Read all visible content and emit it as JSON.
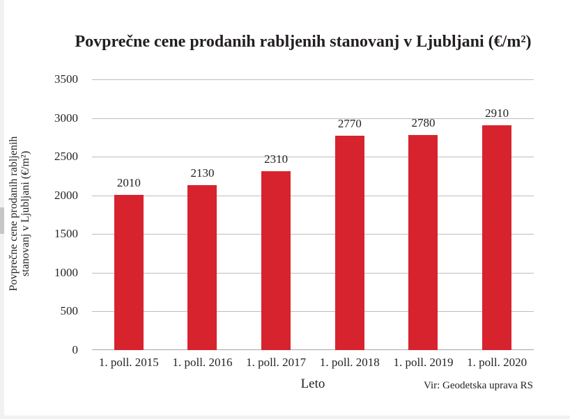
{
  "page": {
    "source_note": "Vir: Geodetska uprava RS"
  },
  "colors": {
    "bar": "#d7232e",
    "gridline": "#bdbdbd",
    "baseline": "#a6a6a6",
    "text": "#231f20",
    "scrollbar_track": "#f1f1f1",
    "scrollbar_thumb": "#c6c6c6"
  },
  "chart_data": {
    "type": "bar",
    "title": "Povprečne cene prodanih rabljenih stanovanj v Ljubljani (€/m²)",
    "categories": [
      "1. poll. 2015",
      "1. poll. 2016",
      "1. poll. 2017",
      "1. poll. 2018",
      "1. poll. 2019",
      "1. poll. 2020"
    ],
    "values": [
      2010,
      2130,
      2310,
      2770,
      2780,
      2910
    ],
    "data_labels": [
      "2010",
      "2130",
      "2310",
      "2770",
      "2780",
      "2910"
    ],
    "xlabel": "Leto",
    "ylabel_lines": [
      "Povprečne cene prodanih rabljenih",
      "stanovanj v Ljubljani (€/m²)"
    ],
    "yticks": [
      0,
      500,
      1000,
      1500,
      2000,
      2500,
      3000,
      3500
    ],
    "ylim": [
      0,
      3500
    ],
    "grid": "horizontal-only",
    "legend": "none",
    "bar_color_hex": "#d7232e"
  }
}
